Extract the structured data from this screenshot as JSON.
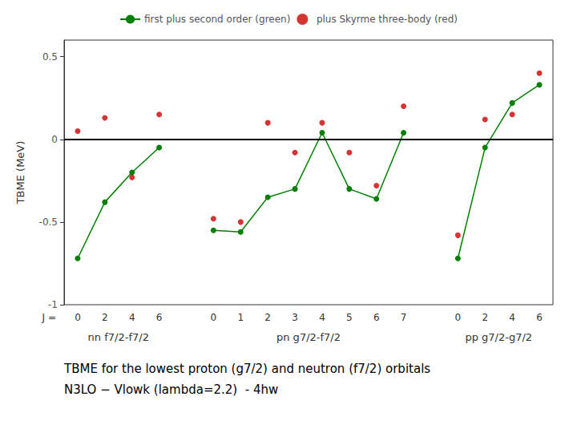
{
  "chart_data": {
    "type": "line",
    "ylabel": "TBME (MeV)",
    "xlabel": "J =",
    "categories": [
      "0",
      "2",
      "4",
      "6",
      null,
      "0",
      "1",
      "2",
      "3",
      "4",
      "5",
      "6",
      "7",
      null,
      "0",
      "2",
      "4",
      "6"
    ],
    "series": [
      {
        "name": "first plus second order (green)",
        "type": "line",
        "color": "#008000",
        "marker": "circle",
        "values": [
          -0.72,
          -0.38,
          -0.2,
          -0.05,
          null,
          -0.55,
          -0.56,
          -0.35,
          -0.3,
          0.04,
          -0.3,
          -0.36,
          0.04,
          null,
          -0.72,
          -0.05,
          0.22,
          0.33
        ]
      },
      {
        "name": "plus Skyrme three-body (red)",
        "type": "scatter",
        "color": "#cc0000",
        "marker": "circle",
        "values": [
          0.05,
          0.13,
          -0.23,
          0.15,
          null,
          -0.48,
          -0.5,
          0.1,
          -0.08,
          0.1,
          -0.08,
          -0.28,
          0.2,
          null,
          -0.58,
          0.12,
          0.15,
          0.4
        ]
      }
    ],
    "hline": 0,
    "annotations": [
      "nn f7/2-f7/2",
      "pn g7/2-f7/2",
      "pp g7/2-g7/2"
    ],
    "caption": [
      "TBME for the lowest proton (g7/2) and neutron (f7/2) orbitals",
      "N3LO − Vlowk (lambda=2.2)  - 4hw"
    ],
    "ylim": [
      -1.0,
      0.6
    ],
    "yticks": [
      -1.0,
      -0.5,
      0.0,
      0.5
    ],
    "grid": false,
    "legend": "top"
  }
}
